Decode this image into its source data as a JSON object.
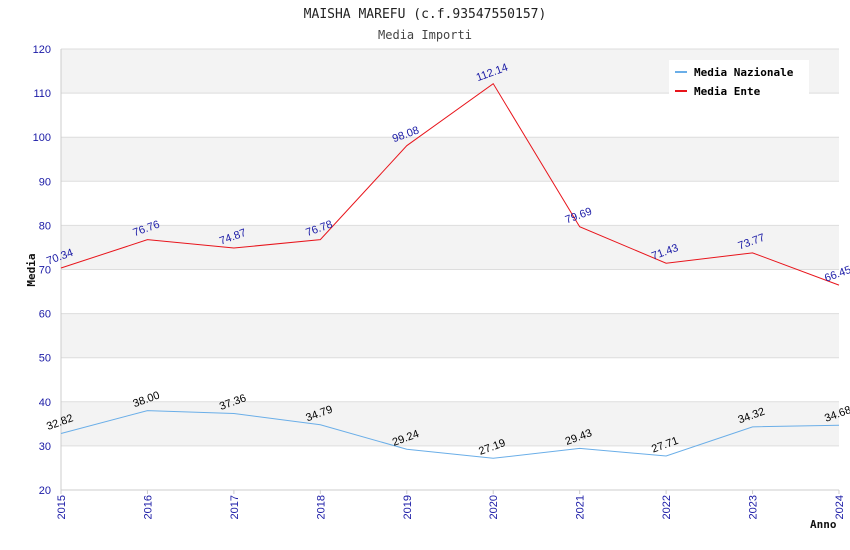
{
  "chart_data": {
    "type": "line",
    "title": "MAISHA MAREFU (c.f.93547550157)",
    "subtitle": "Media Importi",
    "xlabel": "Anno",
    "ylabel": "Media",
    "x": [
      "2015",
      "2016",
      "2017",
      "2018",
      "2019",
      "2020",
      "2021",
      "2022",
      "2023",
      "2024"
    ],
    "ylim": [
      20,
      120
    ],
    "yticks": [
      20,
      30,
      40,
      50,
      60,
      70,
      80,
      90,
      100,
      110,
      120
    ],
    "grid": true,
    "legend_position": "top-right",
    "series": [
      {
        "name": "Media Nazionale",
        "color": "#6aaee8",
        "label_color": "#000000",
        "values": [
          32.82,
          38.0,
          37.36,
          34.79,
          29.24,
          27.19,
          29.43,
          27.71,
          34.32,
          34.68
        ],
        "labels": [
          "32.82",
          "38.00",
          "37.36",
          "34.79",
          "29.24",
          "27.19",
          "29.43",
          "27.71",
          "34.32",
          "34.68"
        ]
      },
      {
        "name": "Media Ente",
        "color": "#e8141b",
        "label_color": "#1a1aa6",
        "values": [
          70.34,
          76.76,
          74.87,
          76.78,
          98.08,
          112.14,
          79.69,
          71.43,
          73.77,
          66.45
        ],
        "labels": [
          "70.34",
          "76.76",
          "74.87",
          "76.78",
          "98.08",
          "112.14",
          "79.69",
          "71.43",
          "73.77",
          "66.45"
        ]
      }
    ]
  }
}
